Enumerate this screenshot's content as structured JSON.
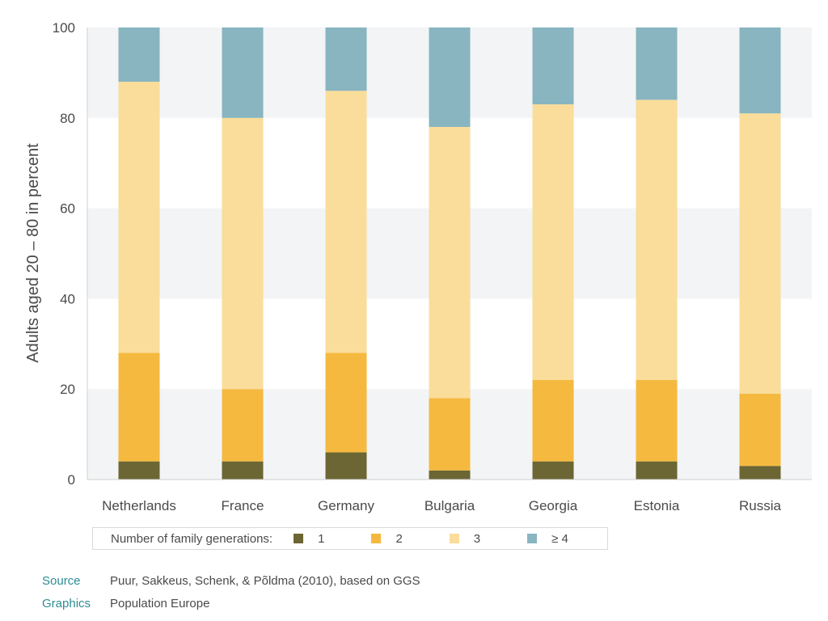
{
  "chart_data": {
    "type": "bar",
    "stacked": true,
    "categories": [
      "Netherlands",
      "France",
      "Germany",
      "Bulgaria",
      "Georgia",
      "Estonia",
      "Russia"
    ],
    "series": [
      {
        "name": "1",
        "color": "#6b6633",
        "values": [
          4,
          4,
          6,
          2,
          4,
          4,
          3
        ]
      },
      {
        "name": "2",
        "color": "#f5b93f",
        "values": [
          24,
          16,
          22,
          16,
          18,
          18,
          16
        ]
      },
      {
        "name": "3",
        "color": "#fadd9a",
        "values": [
          60,
          60,
          58,
          60,
          61,
          62,
          62
        ]
      },
      {
        "name": "≥ 4",
        "color": "#88b5c0",
        "values": [
          12,
          20,
          14,
          22,
          17,
          16,
          19
        ]
      }
    ],
    "ylabel": "Adults aged 20 – 80 in percent",
    "xlabel": "",
    "ylim": [
      0,
      100
    ],
    "yticks": [
      0,
      20,
      40,
      60,
      80,
      100
    ],
    "grid": "alternating horizontal bands",
    "legend_title": "Number of family generations:",
    "legend_position": "bottom"
  },
  "footer": {
    "source_key": "Source",
    "source_value": "Puur, Sakkeus, Schenk, & Põldma (2010), based on GGS",
    "graphics_key": "Graphics",
    "graphics_value": "Population Europe"
  }
}
